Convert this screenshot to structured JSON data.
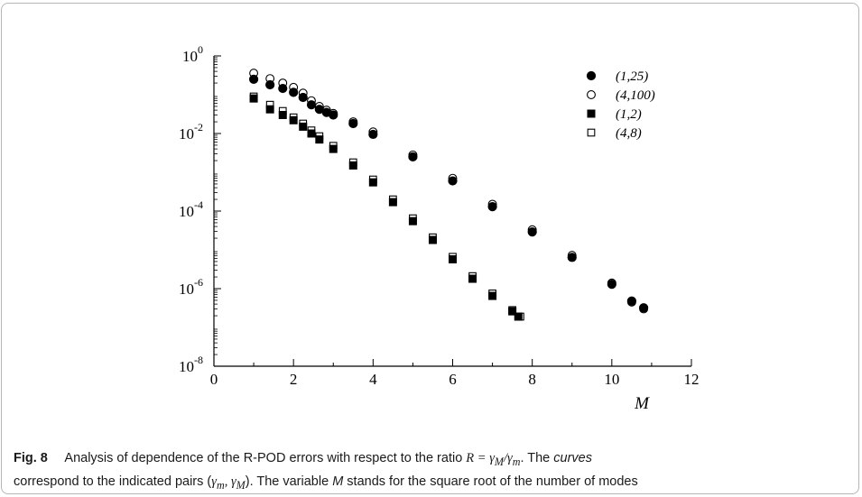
{
  "figure": {
    "label": "Fig. 8",
    "caption_text": "Analysis of dependence of the R-POD errors with respect to the ratio R = γM/γm. The curves correspond to the indicated pairs (γm, γM). The variable M stands for the square root of the number of modes",
    "caption_parts": {
      "p1": "Analysis of dependence of the R-POD errors with respect to the ratio ",
      "math1": "R = γ",
      "sub1": "M",
      "slash": "/γ",
      "sub2": "m",
      "p2": ". The ",
      "curves": "curves",
      "p3_line1": " correspond to the indicated pairs (",
      "math2": "γ",
      "sub3": "m",
      "comma": ", γ",
      "sub4": "M",
      "p4": "). The variable ",
      "M": "M",
      "p5": " stands for the square root of the number of modes"
    }
  },
  "chart_data": {
    "type": "scatter",
    "xlabel": "M",
    "ylabel": "",
    "xlim": [
      0,
      12
    ],
    "ylim": [
      1e-08,
      1
    ],
    "yscale": "log",
    "x_ticks": [
      "0",
      "2",
      "4",
      "6",
      "8",
      "10",
      "12"
    ],
    "y_ticks": [
      {
        "base": "10",
        "exp": "0"
      },
      {
        "base": "10",
        "exp": "-2"
      },
      {
        "base": "10",
        "exp": "-4"
      },
      {
        "base": "10",
        "exp": "-6"
      },
      {
        "base": "10",
        "exp": "-8"
      }
    ],
    "grid": false,
    "legend_position": "top-right",
    "series": [
      {
        "name": "(1,25)",
        "marker": "filled-circle",
        "x": [
          1.0,
          1.41,
          1.73,
          2.0,
          2.24,
          2.45,
          2.65,
          2.83,
          3.0,
          3.5,
          4.0,
          5.0,
          6.0,
          7.0,
          8.0,
          9.0,
          10.0,
          10.5,
          10.8
        ],
        "y": [
          0.25,
          0.18,
          0.145,
          0.115,
          0.085,
          0.055,
          0.042,
          0.035,
          0.03,
          0.018,
          0.0095,
          0.0025,
          0.0006,
          0.00013,
          2.9e-05,
          6.4e-06,
          1.3e-06,
          4.8e-07,
          3.2e-07
        ]
      },
      {
        "name": "(4,100)",
        "marker": "open-circle",
        "x": [
          1.0,
          1.41,
          1.73,
          2.0,
          2.24,
          2.45,
          2.65,
          2.83,
          3.0,
          3.5,
          4.0,
          5.0,
          6.0,
          7.0,
          8.0,
          9.0,
          10.0,
          10.5,
          10.8
        ],
        "y": [
          0.36,
          0.26,
          0.2,
          0.155,
          0.11,
          0.07,
          0.05,
          0.04,
          0.033,
          0.02,
          0.011,
          0.0028,
          0.0007,
          0.00015,
          3.3e-05,
          7.2e-06,
          1.4e-06,
          4.5e-07,
          3e-07
        ]
      },
      {
        "name": "(1,2)",
        "marker": "filled-square",
        "x": [
          1.0,
          1.41,
          1.73,
          2.0,
          2.24,
          2.45,
          2.65,
          3.0,
          3.5,
          4.0,
          4.5,
          5.0,
          5.5,
          6.0,
          6.5,
          7.0,
          7.5,
          7.65
        ],
        "y": [
          0.08,
          0.042,
          0.03,
          0.022,
          0.015,
          0.01,
          0.007,
          0.004,
          0.0015,
          0.00055,
          0.00017,
          5.5e-05,
          1.8e-05,
          5.7e-06,
          1.8e-06,
          6.5e-07,
          2.6e-07,
          1.9e-07
        ]
      },
      {
        "name": "(4,8)",
        "marker": "open-square",
        "x": [
          1.0,
          1.41,
          1.73,
          2.0,
          2.24,
          2.45,
          2.65,
          3.0,
          3.5,
          4.0,
          4.5,
          5.0,
          5.5,
          6.0,
          6.5,
          7.0,
          7.5,
          7.7
        ],
        "y": [
          0.09,
          0.055,
          0.038,
          0.026,
          0.018,
          0.012,
          0.0085,
          0.0048,
          0.0018,
          0.00065,
          0.0002,
          6.5e-05,
          2.1e-05,
          6.6e-06,
          2.1e-06,
          7.5e-07,
          2.8e-07,
          1.9e-07
        ]
      }
    ]
  }
}
